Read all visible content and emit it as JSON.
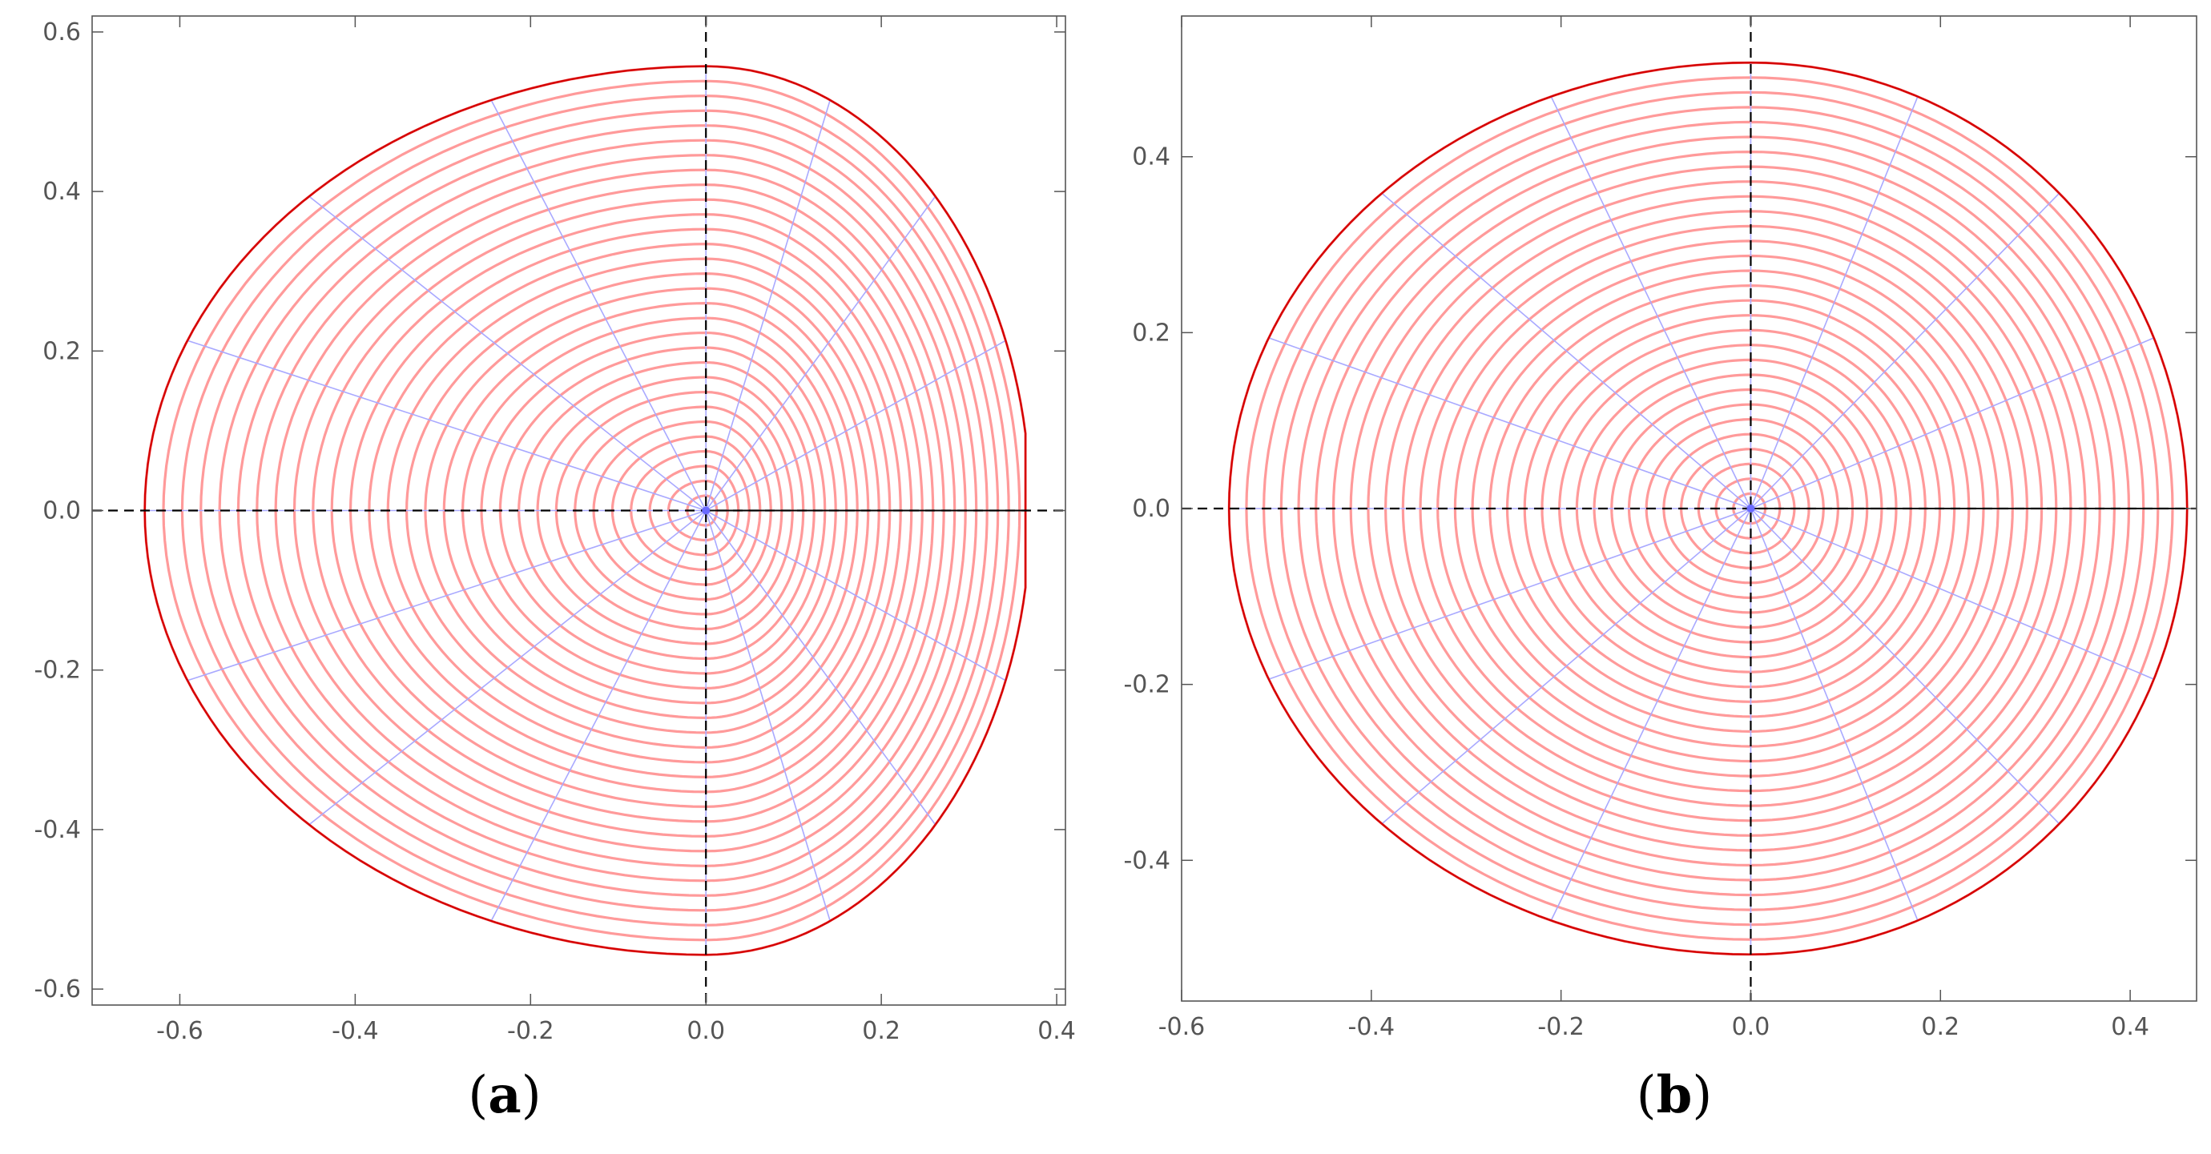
{
  "colors": {
    "level_curve": "#ff9a9a",
    "boundary": "#d40000",
    "radial_line": "#a9a9ff",
    "axis_dash": "#000000",
    "frame": "#555555",
    "tick_label": "#555555"
  },
  "chart_data": [
    {
      "type": "line",
      "caption": "a",
      "xlim": [
        -0.7,
        0.41
      ],
      "ylim": [
        -0.62,
        0.62
      ],
      "x_ticks": [
        -0.6,
        -0.4,
        -0.2,
        0.0,
        0.2,
        0.4
      ],
      "x_tick_labels": [
        "-0.6",
        "-0.4",
        "-0.2",
        "0.0",
        "0.2",
        "0.4"
      ],
      "y_ticks": [
        0.6,
        0.4,
        0.2,
        0.0,
        -0.2,
        -0.4,
        -0.6
      ],
      "y_tick_labels": [
        "0.6",
        "0.4",
        "0.2",
        "0.0",
        "-0.2",
        "-0.4",
        "-0.6"
      ],
      "grid": false,
      "boundary_extent": {
        "x_min": -0.64,
        "x_max": 0.37,
        "y_min": -0.557,
        "y_max": 0.557
      },
      "level_curve_count": 30,
      "radial_line_count": 16,
      "flat_right_edge": true
    },
    {
      "type": "line",
      "caption": "b",
      "xlim": [
        -0.6,
        0.47
      ],
      "ylim": [
        -0.56,
        0.56
      ],
      "x_ticks": [
        -0.6,
        -0.4,
        -0.2,
        0.0,
        0.2,
        0.4
      ],
      "x_tick_labels": [
        "-0.6",
        "-0.4",
        "-0.2",
        "0.0",
        "0.2",
        "0.4"
      ],
      "y_ticks": [
        0.4,
        0.2,
        0.0,
        -0.2,
        -0.4
      ],
      "y_tick_labels": [
        "0.4",
        "0.2",
        "0.0",
        "-0.2",
        "-0.4"
      ],
      "grid": false,
      "boundary_extent": {
        "x_min": -0.55,
        "x_max": 0.46,
        "y_min": -0.507,
        "y_max": 0.507
      },
      "level_curve_count": 30,
      "radial_line_count": 16,
      "flat_right_edge": false
    }
  ]
}
